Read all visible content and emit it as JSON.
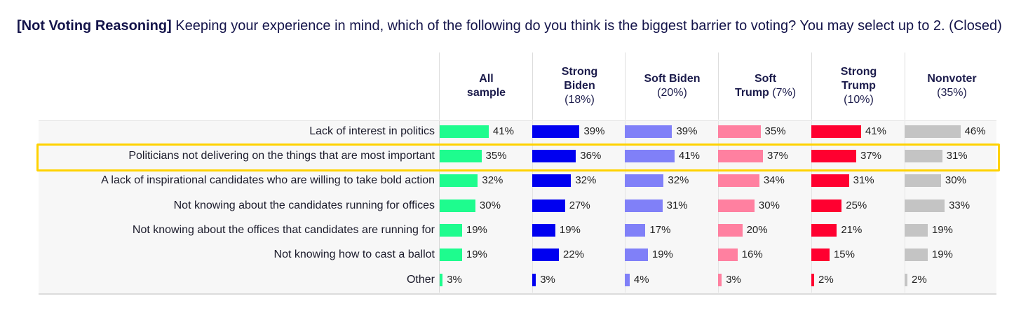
{
  "title": {
    "bold": "[Not Voting Reasoning]",
    "text": " Keeping your experience in mind, which of the following do you think is the biggest barrier to voting? You may select up to 2. (Closed)"
  },
  "chart_data": {
    "type": "bar",
    "title": "[Not Voting Reasoning] Keeping your experience in mind, which of the following do you think is the biggest barrier to voting? You may select up to 2. (Closed)",
    "categories": [
      "Lack of interest in politics",
      "Politicians not delivering on the things that are most important",
      "A lack of inspirational candidates who are willing to take bold action",
      "Not knowing about the candidates running for offices",
      "Not knowing about the offices that candidates are running for",
      "Not knowing how to cast a ballot",
      "Other"
    ],
    "highlighted_category": "Politicians not delivering on the things that are most important",
    "series": [
      {
        "name": "All sample",
        "pct": "",
        "color": "#1efc8e",
        "values": [
          41,
          35,
          32,
          30,
          19,
          19,
          3
        ]
      },
      {
        "name": "Strong Biden",
        "pct": "(18%)",
        "color": "#0000f0",
        "values": [
          39,
          36,
          32,
          27,
          19,
          22,
          3
        ]
      },
      {
        "name": "Soft Biden",
        "pct": "(20%)",
        "color": "#8080f8",
        "values": [
          39,
          41,
          32,
          31,
          17,
          19,
          4
        ]
      },
      {
        "name": "Soft Trump",
        "pct": "(7%)",
        "color": "#ff80a0",
        "values": [
          35,
          37,
          34,
          30,
          20,
          16,
          3
        ]
      },
      {
        "name": "Strong Trump",
        "pct": "(10%)",
        "color": "#ff0030",
        "values": [
          41,
          37,
          31,
          25,
          21,
          15,
          2
        ]
      },
      {
        "name": "Nonvoter",
        "pct": "(35%)",
        "color": "#c4c4c4",
        "values": [
          46,
          31,
          30,
          33,
          19,
          19,
          2
        ]
      }
    ],
    "value_suffix": "%",
    "highlight_color": "#ffd200"
  }
}
